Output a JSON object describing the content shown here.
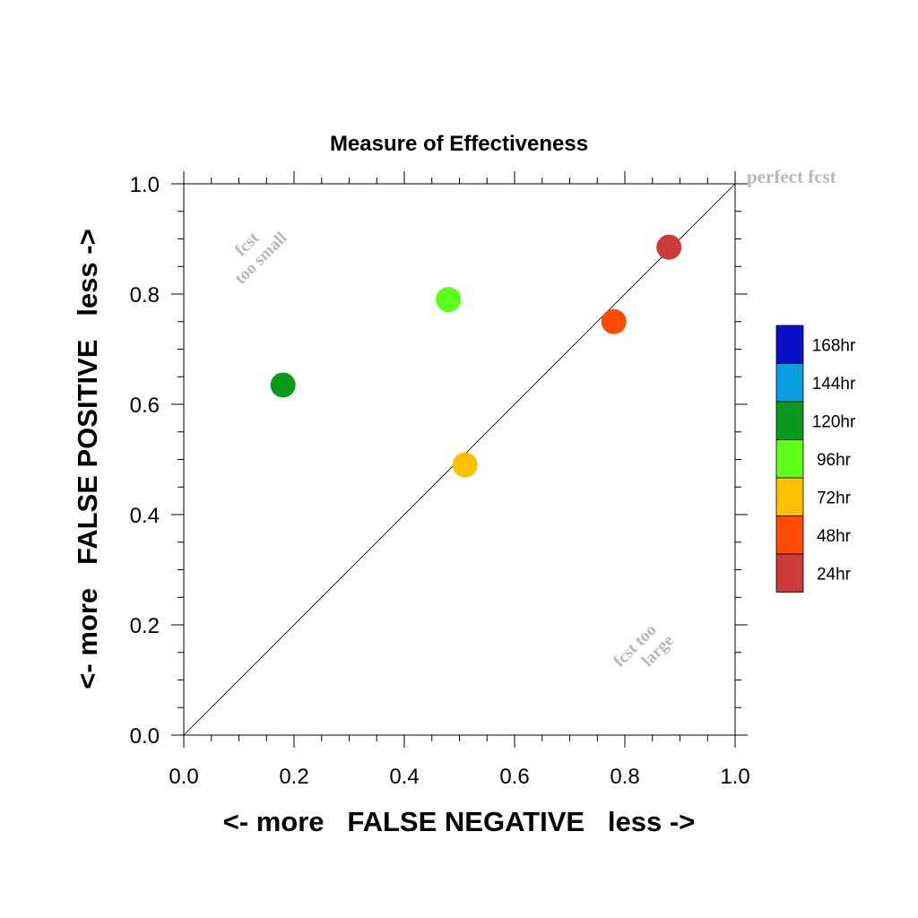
{
  "chart_data": {
    "type": "scatter",
    "title": "Measure of Effectiveness",
    "xlabel": "<- more   FALSE NEGATIVE   less ->",
    "ylabel": "<- more   FALSE POSITIVE   less ->",
    "xlim": [
      0,
      1
    ],
    "ylim": [
      0,
      1
    ],
    "xticks": [
      "0.0",
      "0.2",
      "0.4",
      "0.6",
      "0.8",
      "1.0"
    ],
    "yticks": [
      "0.0",
      "0.2",
      "0.4",
      "0.6",
      "0.8",
      "1.0"
    ],
    "grid": false,
    "diagonal_reference_line": true,
    "annotations": {
      "top_right": "perfect fcst",
      "upper_left_line1": "fcst",
      "upper_left_line2": "too small",
      "lower_right_line1": "fcst too",
      "lower_right_line2": "large"
    },
    "legend": {
      "placement": "right",
      "entries": [
        {
          "label": "168hr",
          "color": "#0a10c8"
        },
        {
          "label": "144hr",
          "color": "#0aa0e0"
        },
        {
          "label": "120hr",
          "color": "#089a18"
        },
        {
          "label": "96hr",
          "color": "#5dff1a"
        },
        {
          "label": "72hr",
          "color": "#ffc000"
        },
        {
          "label": "48hr",
          "color": "#ff4a00"
        },
        {
          "label": "24hr",
          "color": "#cc3a3a"
        }
      ]
    },
    "points": [
      {
        "series": "24hr",
        "x": 0.88,
        "y": 0.885,
        "color": "#cc3a3a"
      },
      {
        "series": "48hr",
        "x": 0.78,
        "y": 0.75,
        "color": "#ff4a00"
      },
      {
        "series": "72hr",
        "x": 0.51,
        "y": 0.49,
        "color": "#ffc000"
      },
      {
        "series": "96hr",
        "x": 0.48,
        "y": 0.79,
        "color": "#5dff1a"
      },
      {
        "series": "120hr",
        "x": 0.18,
        "y": 0.635,
        "color": "#089a18"
      }
    ]
  }
}
